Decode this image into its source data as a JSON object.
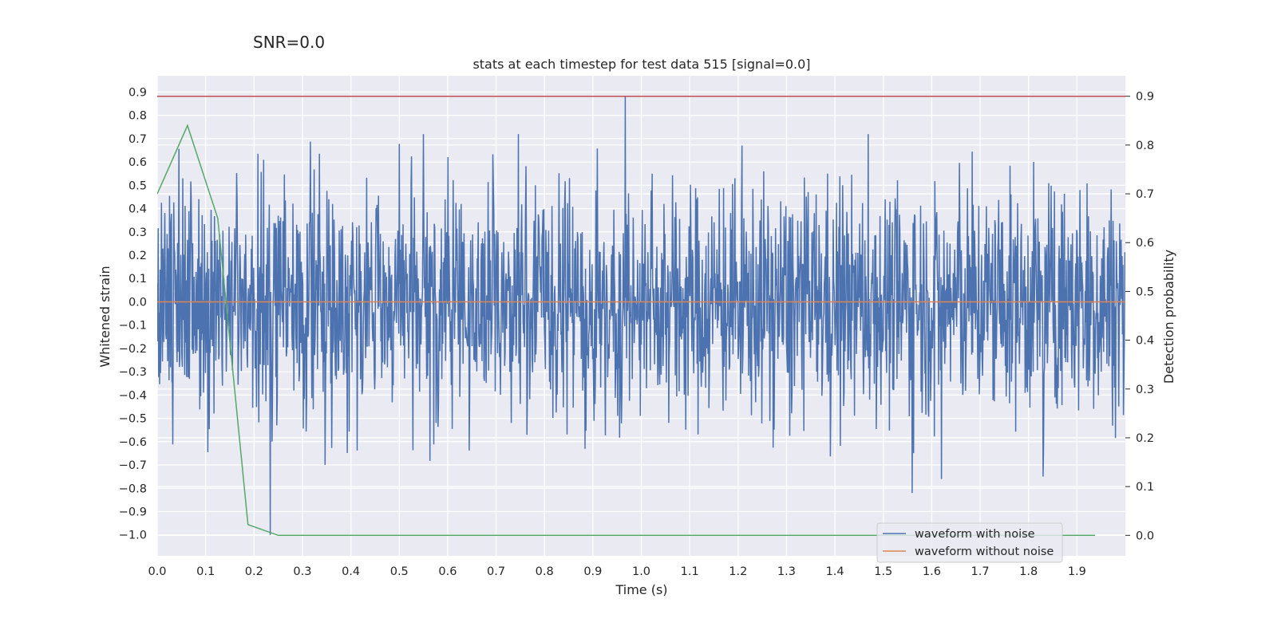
{
  "suptitle": "SNR=0.0",
  "chart_data": {
    "type": "line",
    "title": "stats at each timestep for test data 515 [signal=0.0]",
    "xlabel": "Time (s)",
    "ylabel": "Whitened strain",
    "y2label": "Detection probability",
    "xlim": [
      0.0,
      2.0
    ],
    "ylim": [
      -1.09,
      0.97
    ],
    "y2lim": [
      -0.042,
      0.942
    ],
    "xticks": [
      "0.0",
      "0.1",
      "0.2",
      "0.3",
      "0.4",
      "0.5",
      "0.6",
      "0.7",
      "0.8",
      "0.9",
      "1.0",
      "1.1",
      "1.2",
      "1.3",
      "1.4",
      "1.5",
      "1.6",
      "1.7",
      "1.8",
      "1.9"
    ],
    "yticks": [
      "0.9",
      "0.8",
      "0.7",
      "0.6",
      "0.5",
      "0.4",
      "0.3",
      "0.2",
      "0.1",
      "0.0",
      "−0.1",
      "−0.2",
      "−0.3",
      "−0.4",
      "−0.5",
      "−0.6",
      "−0.7",
      "−0.8",
      "−0.9",
      "−1.0"
    ],
    "y2ticks": [
      "0.9",
      "0.8",
      "0.7",
      "0.6",
      "0.5",
      "0.4",
      "0.3",
      "0.2",
      "0.1",
      "0.0"
    ],
    "grid": true,
    "legend_position": "lower-right",
    "colors": {
      "background": "#eaeaf2",
      "grid": "#ffffff",
      "noisy": "#4c72b0",
      "clean": "#dd8452",
      "probability": "#55a868",
      "threshold": "#c44e52"
    },
    "series": [
      {
        "name": "waveform with noise",
        "axis": "left",
        "description_of_range": "dense noise, mostly within -0.6..0.6",
        "notable_points": [
          {
            "x": 0.233,
            "y": -1.0
          },
          {
            "x": 0.967,
            "y": 0.88
          },
          {
            "x": 1.56,
            "y": -0.82
          },
          {
            "x": 1.62,
            "y": -0.76
          },
          {
            "x": 1.83,
            "y": -0.75
          }
        ]
      },
      {
        "name": "waveform without noise",
        "axis": "left",
        "x": [
          0.0,
          2.0
        ],
        "y": [
          0.0,
          0.0
        ]
      },
      {
        "name": "",
        "axis": "right",
        "x": [
          0.0,
          0.0625,
          0.125,
          0.1875,
          0.25,
          0.3125,
          0.375,
          0.4375,
          0.5,
          0.5625,
          0.625,
          0.6875,
          0.75,
          0.8125,
          0.875,
          0.9375,
          1.0,
          1.0625,
          1.125,
          1.1875,
          1.25,
          1.3125,
          1.375,
          1.4375,
          1.5,
          1.5625,
          1.625,
          1.6875,
          1.75,
          1.8125,
          1.875,
          1.9375
        ],
        "y": [
          0.7,
          0.84,
          0.65,
          0.022,
          0.0,
          0.0,
          0.0,
          0.0,
          0.0,
          0.0,
          0.0,
          0.0,
          0.0,
          0.0,
          0.0,
          0.0,
          0.0,
          0.0,
          0.0,
          0.0,
          0.0,
          0.0,
          0.0,
          0.0,
          0.0,
          0.0,
          0.0,
          0.0,
          0.0,
          0.0,
          0.0,
          0.0
        ]
      },
      {
        "name": "",
        "axis": "right",
        "x": [
          0.0,
          2.0
        ],
        "y": [
          0.9,
          0.9
        ]
      }
    ]
  }
}
